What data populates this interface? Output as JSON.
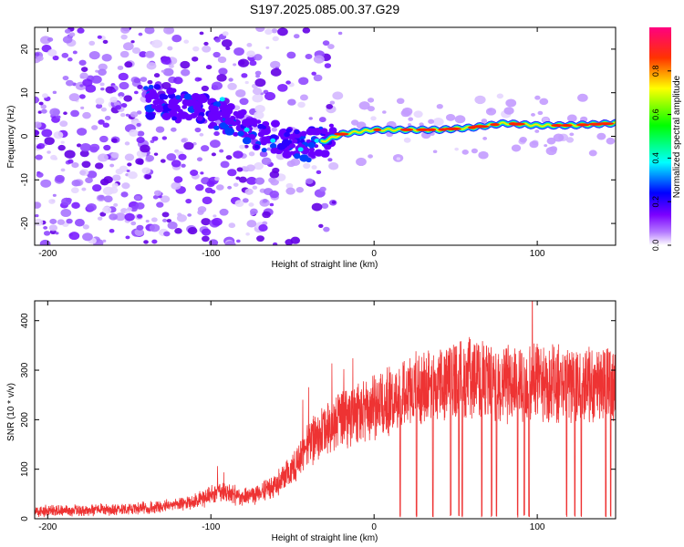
{
  "figure": {
    "title": "S197.2025.085.00.37.G29"
  },
  "chart_data": [
    {
      "type": "heatmap",
      "xlabel": "Height of straight line (km)",
      "ylabel": "Frequency (Hz)",
      "xlim": [
        -208,
        148
      ],
      "ylim": [
        -25,
        25
      ],
      "xticks": [
        -200,
        -100,
        0,
        100
      ],
      "yticks": [
        -20,
        -10,
        0,
        10,
        20
      ],
      "colorbar": {
        "label": "Normalized spectral amplitude",
        "range": [
          0,
          1
        ],
        "ticks": [
          0.0,
          0.2,
          0.4,
          0.6,
          0.8
        ],
        "colormap": [
          "#ffffff",
          "#7b00ff",
          "#0000ff",
          "#00ffff",
          "#00ff00",
          "#ffff00",
          "#ff0000",
          "#ff0080"
        ]
      },
      "ridge": [
        {
          "x": -130,
          "y": 8
        },
        {
          "x": -110,
          "y": 6
        },
        {
          "x": -95,
          "y": 5
        },
        {
          "x": -80,
          "y": 2
        },
        {
          "x": -65,
          "y": 0
        },
        {
          "x": -50,
          "y": -1
        },
        {
          "x": -40,
          "y": -2
        },
        {
          "x": -30,
          "y": -1
        },
        {
          "x": -20,
          "y": 0.5
        },
        {
          "x": 0,
          "y": 1.5
        },
        {
          "x": 20,
          "y": 1.5
        },
        {
          "x": 40,
          "y": 1.5
        },
        {
          "x": 60,
          "y": 2
        },
        {
          "x": 80,
          "y": 3
        },
        {
          "x": 100,
          "y": 2.5
        },
        {
          "x": 120,
          "y": 2.5
        },
        {
          "x": 148,
          "y": 3
        }
      ]
    },
    {
      "type": "line",
      "xlabel": "Height of straight line (km)",
      "ylabel": "SNR (10 * v/v)",
      "xlim": [
        -208,
        148
      ],
      "ylim": [
        0,
        440
      ],
      "xticks": [
        -200,
        -100,
        0,
        100
      ],
      "yticks": [
        0,
        100,
        200,
        300,
        400
      ],
      "color": "#ee3333",
      "baseline": [
        {
          "x": -208,
          "y": 15
        },
        {
          "x": -160,
          "y": 18
        },
        {
          "x": -130,
          "y": 25
        },
        {
          "x": -110,
          "y": 35
        },
        {
          "x": -95,
          "y": 55
        },
        {
          "x": -80,
          "y": 45
        },
        {
          "x": -70,
          "y": 50
        },
        {
          "x": -60,
          "y": 70
        },
        {
          "x": -50,
          "y": 100
        },
        {
          "x": -40,
          "y": 150
        },
        {
          "x": -30,
          "y": 180
        },
        {
          "x": -20,
          "y": 200
        },
        {
          "x": 0,
          "y": 225
        },
        {
          "x": 20,
          "y": 255
        },
        {
          "x": 40,
          "y": 275
        },
        {
          "x": 60,
          "y": 285
        },
        {
          "x": 80,
          "y": 270
        },
        {
          "x": 100,
          "y": 278
        },
        {
          "x": 120,
          "y": 268
        },
        {
          "x": 148,
          "y": 270
        }
      ],
      "dropouts": [
        16,
        26,
        36,
        47,
        52,
        54,
        66,
        72,
        75,
        88,
        92,
        95,
        118,
        123,
        127,
        142,
        145
      ],
      "peak": {
        "x": 97,
        "y": 440
      }
    }
  ]
}
